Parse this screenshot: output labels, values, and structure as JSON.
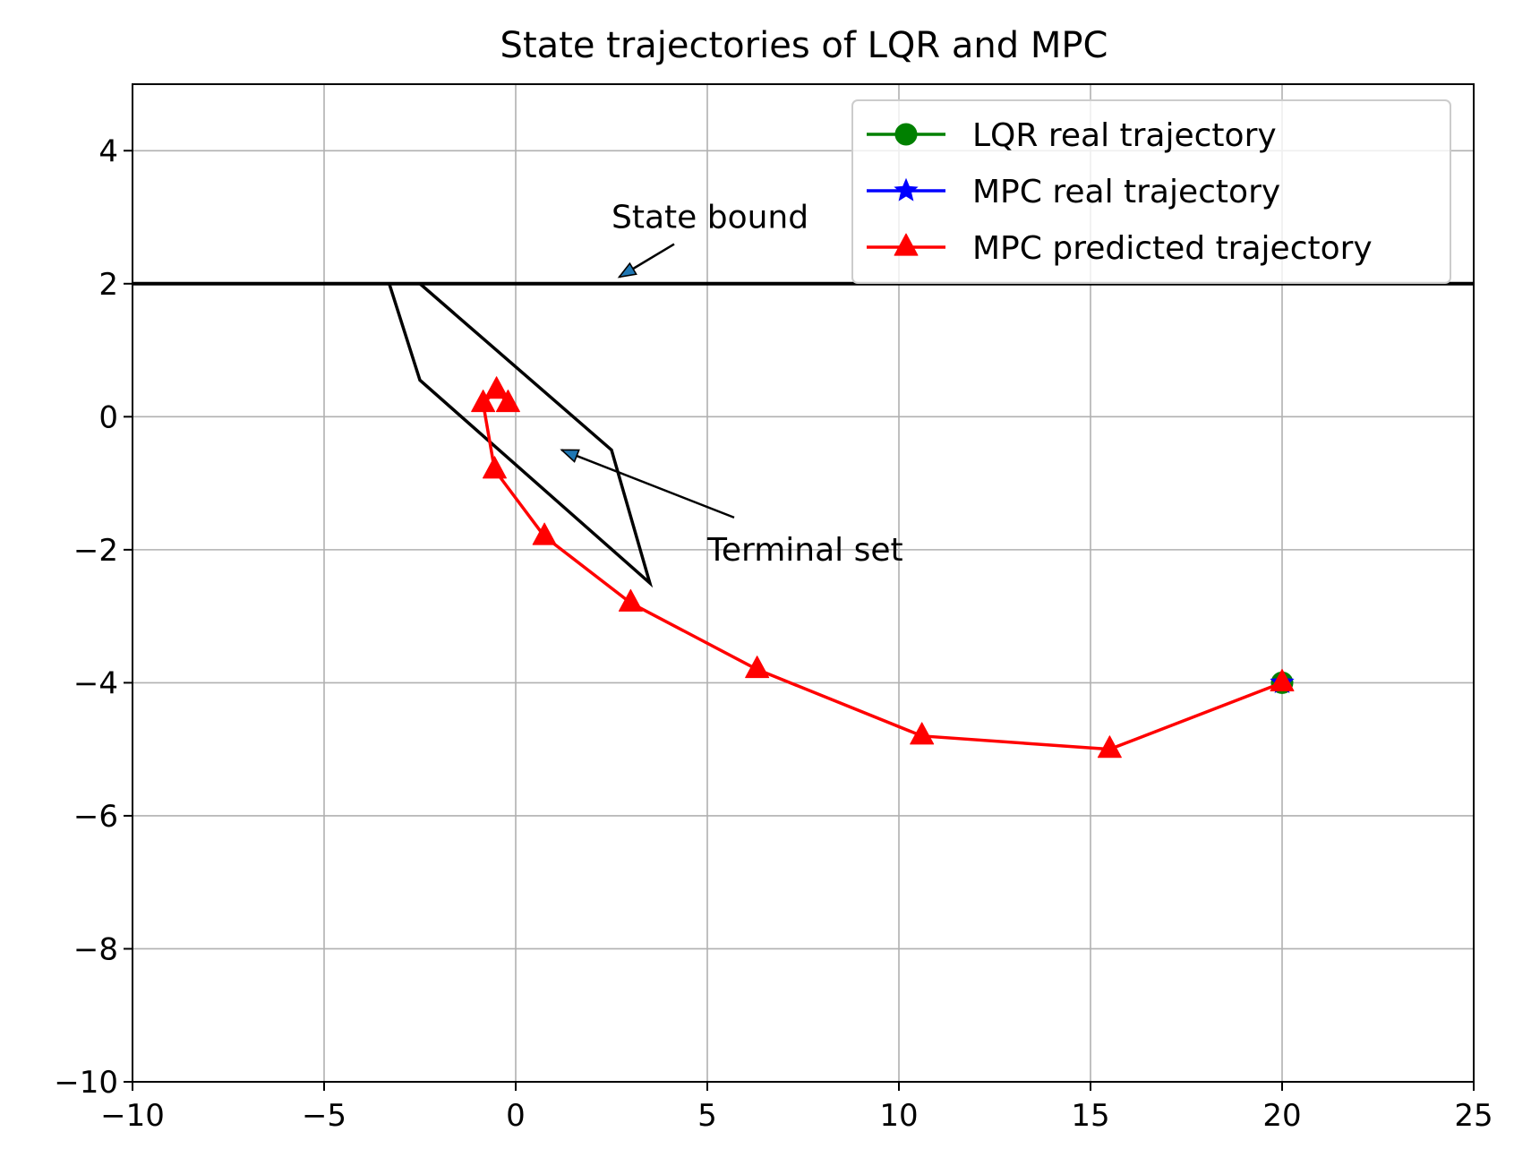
{
  "chart_data": {
    "type": "line",
    "title": "State trajectories of LQR and MPC",
    "xlabel": "",
    "ylabel": "",
    "xlim": [
      -10,
      25
    ],
    "ylim": [
      -10,
      5
    ],
    "xticks": [
      -10,
      -5,
      0,
      5,
      10,
      15,
      20,
      25
    ],
    "yticks": [
      -10,
      -8,
      -6,
      -4,
      -2,
      0,
      2,
      4
    ],
    "xtick_labels": [
      "−10",
      "−5",
      "0",
      "5",
      "10",
      "15",
      "20",
      "25"
    ],
    "ytick_labels": [
      "−10",
      "−8",
      "−6",
      "−4",
      "−2",
      "0",
      "2",
      "4"
    ],
    "grid": true,
    "legend_position": "top-right",
    "series": [
      {
        "name": "LQR real trajectory",
        "color": "#008000",
        "marker": "circle",
        "x": [
          20
        ],
        "y": [
          -4
        ]
      },
      {
        "name": "MPC real trajectory",
        "color": "#0000ff",
        "marker": "star",
        "x": [
          20
        ],
        "y": [
          -4
        ]
      },
      {
        "name": "MPC predicted trajectory",
        "color": "#ff0000",
        "marker": "triangle",
        "x": [
          20,
          15.5,
          10.6,
          6.3,
          3.0,
          0.75,
          -0.55,
          -0.85,
          -0.5,
          -0.2
        ],
        "y": [
          -4,
          -5.0,
          -4.8,
          -3.8,
          -2.8,
          -1.8,
          -0.8,
          0.2,
          0.4,
          0.2
        ]
      }
    ],
    "state_bound": {
      "y": 2,
      "color": "#000000"
    },
    "terminal_set": {
      "color": "#000000",
      "x": [
        -3.3,
        -2.5,
        3.5,
        2.5,
        -2.5,
        -3.3
      ],
      "y": [
        2,
        0.55,
        -2.5,
        -0.5,
        2,
        2
      ]
    },
    "annotations": [
      {
        "text": "State bound",
        "text_xy": [
          2.5,
          3.0
        ],
        "arrow_to": [
          2.7,
          2.1
        ]
      },
      {
        "text": "Terminal set",
        "text_xy": [
          5.0,
          -2.0
        ],
        "arrow_to": [
          1.2,
          -0.5
        ]
      }
    ]
  }
}
